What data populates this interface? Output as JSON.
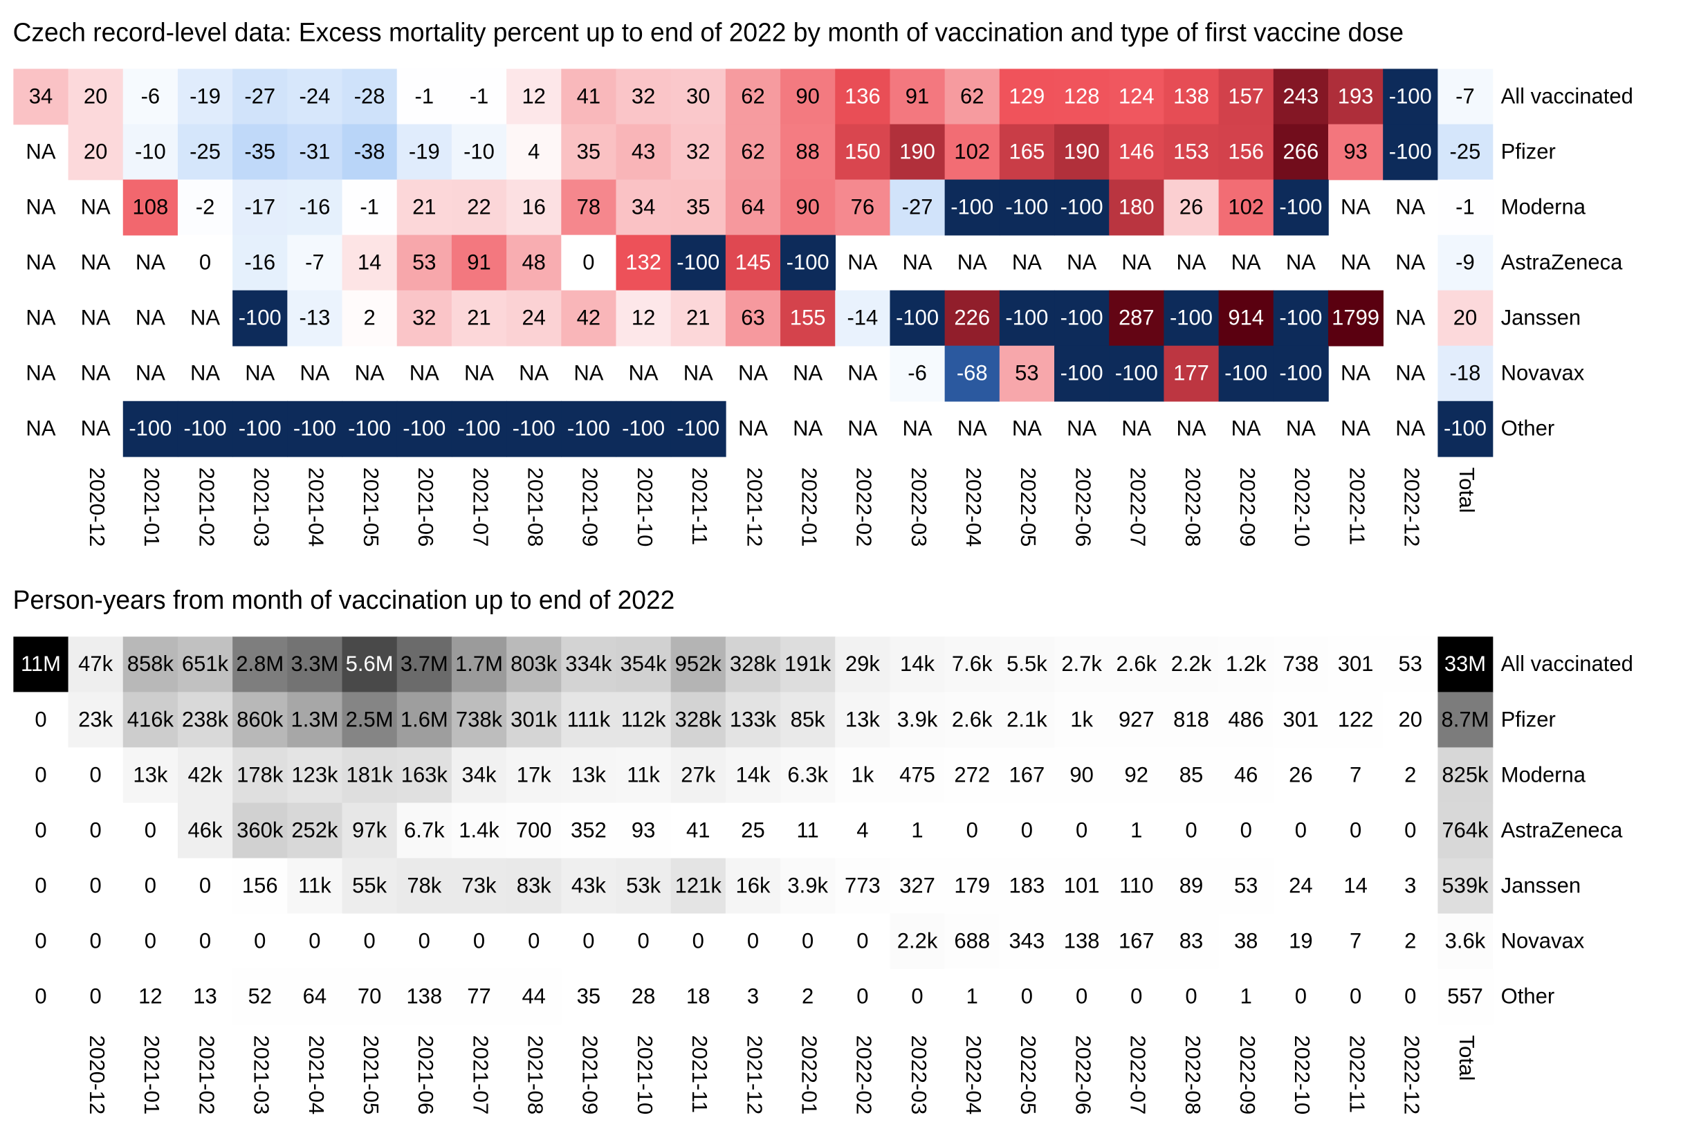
{
  "chart_data": [
    {
      "type": "heatmap",
      "title": "Czech record-level data: Excess mortality percent up to end of 2022 by month of vaccination and type of first vaccine dose",
      "colormap": [
        "#0d2b5a",
        "#2f5fa8",
        "#b8d4f8",
        "#ffffff",
        "#f0525a",
        "#5a0010"
      ],
      "categories": [
        null,
        "2020-12",
        "2021-01",
        "2021-02",
        "2021-03",
        "2021-04",
        "2021-05",
        "2021-06",
        "2021-07",
        "2021-08",
        "2021-09",
        "2021-10",
        "2021-11",
        "2021-12",
        "2022-01",
        "2022-02",
        "2022-03",
        "2022-04",
        "2022-05",
        "2022-06",
        "2022-07",
        "2022-08",
        "2022-09",
        "2022-10",
        "2022-11",
        "2022-12",
        "Total"
      ],
      "series": [
        {
          "name": "All vaccinated",
          "values": [
            34,
            20,
            -6,
            -19,
            -27,
            -24,
            -28,
            -1,
            -1,
            12,
            41,
            32,
            30,
            62,
            90,
            136,
            91,
            62,
            129,
            128,
            124,
            138,
            157,
            243,
            193,
            -100,
            -7
          ]
        },
        {
          "name": "Pfizer",
          "values": [
            null,
            20,
            -10,
            -25,
            -35,
            -31,
            -38,
            -19,
            -10,
            4,
            35,
            43,
            32,
            62,
            88,
            150,
            190,
            102,
            165,
            190,
            146,
            153,
            156,
            266,
            93,
            -100,
            -25
          ],
          "value_labels": [
            "NA",
            "20",
            "-10",
            "-25",
            "-35",
            "-31",
            "-38",
            "-19",
            "-10",
            "4",
            "35",
            "43",
            "32",
            "62",
            "88",
            "150",
            "190",
            "102",
            "165",
            "190",
            "146",
            "153",
            "156",
            "266",
            "93",
            "-100",
            "-25"
          ]
        },
        {
          "name": "Moderna",
          "values": [
            null,
            null,
            108,
            -2,
            -17,
            -16,
            -1,
            21,
            22,
            16,
            78,
            34,
            35,
            64,
            90,
            76,
            -27,
            -100,
            -100,
            -100,
            180,
            26,
            102,
            -100,
            null,
            null,
            -1
          ],
          "value_labels": [
            "NA",
            "NA",
            "108",
            "-2",
            "-17",
            "-16",
            "-1",
            "21",
            "22",
            "16",
            "78",
            "34",
            "35",
            "64",
            "90",
            "76",
            "-27",
            "-100",
            "-100",
            "-100",
            "180",
            "26",
            "102",
            "-100",
            "NA",
            "NA",
            "-1"
          ]
        },
        {
          "name": "AstraZeneca",
          "values": [
            null,
            null,
            null,
            0,
            -16,
            -7,
            14,
            53,
            91,
            48,
            0,
            132,
            -100,
            145,
            -100,
            null,
            null,
            null,
            null,
            null,
            null,
            null,
            null,
            null,
            null,
            null,
            -9
          ],
          "value_labels": [
            "NA",
            "NA",
            "NA",
            "0",
            "-16",
            "-7",
            "14",
            "53",
            "91",
            "48",
            "0",
            "132",
            "-100",
            "145",
            "-100",
            "NA",
            "NA",
            "NA",
            "NA",
            "NA",
            "NA",
            "NA",
            "NA",
            "NA",
            "NA",
            "NA",
            "-9"
          ]
        },
        {
          "name": "Janssen",
          "values": [
            null,
            null,
            null,
            null,
            -100,
            -13,
            2,
            32,
            21,
            24,
            42,
            12,
            21,
            63,
            155,
            -14,
            -100,
            226,
            -100,
            -100,
            287,
            -100,
            914,
            -100,
            1799,
            null,
            20
          ],
          "value_labels": [
            "NA",
            "NA",
            "NA",
            "NA",
            "-100",
            "-13",
            "2",
            "32",
            "21",
            "24",
            "42",
            "12",
            "21",
            "63",
            "155",
            "-14",
            "-100",
            "226",
            "-100",
            "-100",
            "287",
            "-100",
            "914",
            "-100",
            "1799",
            "NA",
            "20"
          ]
        },
        {
          "name": "Novavax",
          "values": [
            null,
            null,
            null,
            null,
            null,
            null,
            null,
            null,
            null,
            null,
            null,
            null,
            null,
            null,
            null,
            null,
            -6,
            -68,
            53,
            -100,
            -100,
            177,
            -100,
            -100,
            null,
            null,
            -18
          ],
          "value_labels": [
            "NA",
            "NA",
            "NA",
            "NA",
            "NA",
            "NA",
            "NA",
            "NA",
            "NA",
            "NA",
            "NA",
            "NA",
            "NA",
            "NA",
            "NA",
            "NA",
            "-6",
            "-68",
            "53",
            "-100",
            "-100",
            "177",
            "-100",
            "-100",
            "NA",
            "NA",
            "-18"
          ]
        },
        {
          "name": "Other",
          "values": [
            null,
            null,
            -100,
            -100,
            -100,
            -100,
            -100,
            -100,
            -100,
            -100,
            -100,
            -100,
            -100,
            null,
            null,
            null,
            null,
            null,
            null,
            null,
            null,
            null,
            null,
            null,
            null,
            null,
            -100
          ],
          "value_labels": [
            "NA",
            "NA",
            "-100",
            "-100",
            "-100",
            "-100",
            "-100",
            "-100",
            "-100",
            "-100",
            "-100",
            "-100",
            "-100",
            "NA",
            "NA",
            "NA",
            "NA",
            "NA",
            "NA",
            "NA",
            "NA",
            "NA",
            "NA",
            "NA",
            "NA",
            "NA",
            "-100"
          ]
        }
      ]
    },
    {
      "type": "heatmap",
      "title": "Person-years from month of vaccination up to end of 2022",
      "colormap": [
        "#ffffff",
        "#000000"
      ],
      "categories": [
        null,
        "2020-12",
        "2021-01",
        "2021-02",
        "2021-03",
        "2021-04",
        "2021-05",
        "2021-06",
        "2021-07",
        "2021-08",
        "2021-09",
        "2021-10",
        "2021-11",
        "2021-12",
        "2022-01",
        "2022-02",
        "2022-03",
        "2022-04",
        "2022-05",
        "2022-06",
        "2022-07",
        "2022-08",
        "2022-09",
        "2022-10",
        "2022-11",
        "2022-12",
        "Total"
      ],
      "series": [
        {
          "name": "All vaccinated",
          "values": [
            11000000,
            47000,
            858000,
            651000,
            2800000,
            3300000,
            5600000,
            3700000,
            1700000,
            803000,
            334000,
            354000,
            952000,
            328000,
            191000,
            29000,
            14000,
            7600,
            5500,
            2700,
            2600,
            2200,
            1200,
            738,
            301,
            53,
            33000000
          ],
          "value_labels": [
            "11M",
            "47k",
            "858k",
            "651k",
            "2.8M",
            "3.3M",
            "5.6M",
            "3.7M",
            "1.7M",
            "803k",
            "334k",
            "354k",
            "952k",
            "328k",
            "191k",
            "29k",
            "14k",
            "7.6k",
            "5.5k",
            "2.7k",
            "2.6k",
            "2.2k",
            "1.2k",
            "738",
            "301",
            "53",
            "33M"
          ]
        },
        {
          "name": "Pfizer",
          "values": [
            0,
            23000,
            416000,
            238000,
            860000,
            1300000,
            2500000,
            1600000,
            738000,
            301000,
            111000,
            112000,
            328000,
            133000,
            85000,
            13000,
            3900,
            2600,
            2100,
            1000,
            927,
            818,
            486,
            301,
            122,
            20,
            8700000
          ],
          "value_labels": [
            "0",
            "23k",
            "416k",
            "238k",
            "860k",
            "1.3M",
            "2.5M",
            "1.6M",
            "738k",
            "301k",
            "111k",
            "112k",
            "328k",
            "133k",
            "85k",
            "13k",
            "3.9k",
            "2.6k",
            "2.1k",
            "1k",
            "927",
            "818",
            "486",
            "301",
            "122",
            "20",
            "8.7M"
          ]
        },
        {
          "name": "Moderna",
          "values": [
            0,
            0,
            13000,
            42000,
            178000,
            123000,
            181000,
            163000,
            34000,
            17000,
            13000,
            11000,
            27000,
            14000,
            6300,
            1000,
            475,
            272,
            167,
            90,
            92,
            85,
            46,
            26,
            7,
            2,
            825000
          ],
          "value_labels": [
            "0",
            "0",
            "13k",
            "42k",
            "178k",
            "123k",
            "181k",
            "163k",
            "34k",
            "17k",
            "13k",
            "11k",
            "27k",
            "14k",
            "6.3k",
            "1k",
            "475",
            "272",
            "167",
            "90",
            "92",
            "85",
            "46",
            "26",
            "7",
            "2",
            "825k"
          ]
        },
        {
          "name": "AstraZeneca",
          "values": [
            0,
            0,
            0,
            46000,
            360000,
            252000,
            97000,
            6700,
            1400,
            700,
            352,
            93,
            41,
            25,
            11,
            4,
            1,
            0,
            0,
            0,
            1,
            0,
            0,
            0,
            0,
            0,
            764000
          ],
          "value_labels": [
            "0",
            "0",
            "0",
            "46k",
            "360k",
            "252k",
            "97k",
            "6.7k",
            "1.4k",
            "700",
            "352",
            "93",
            "41",
            "25",
            "11",
            "4",
            "1",
            "0",
            "0",
            "0",
            "1",
            "0",
            "0",
            "0",
            "0",
            "0",
            "764k"
          ]
        },
        {
          "name": "Janssen",
          "values": [
            0,
            0,
            0,
            0,
            156,
            11000,
            55000,
            78000,
            73000,
            83000,
            43000,
            53000,
            121000,
            16000,
            3900,
            773,
            327,
            179,
            183,
            101,
            110,
            89,
            53,
            24,
            14,
            3,
            539000
          ],
          "value_labels": [
            "0",
            "0",
            "0",
            "0",
            "156",
            "11k",
            "55k",
            "78k",
            "73k",
            "83k",
            "43k",
            "53k",
            "121k",
            "16k",
            "3.9k",
            "773",
            "327",
            "179",
            "183",
            "101",
            "110",
            "89",
            "53",
            "24",
            "14",
            "3",
            "539k"
          ]
        },
        {
          "name": "Novavax",
          "values": [
            0,
            0,
            0,
            0,
            0,
            0,
            0,
            0,
            0,
            0,
            0,
            0,
            0,
            0,
            0,
            0,
            2200,
            688,
            343,
            138,
            167,
            83,
            38,
            19,
            7,
            2,
            3600
          ],
          "value_labels": [
            "0",
            "0",
            "0",
            "0",
            "0",
            "0",
            "0",
            "0",
            "0",
            "0",
            "0",
            "0",
            "0",
            "0",
            "0",
            "0",
            "2.2k",
            "688",
            "343",
            "138",
            "167",
            "83",
            "38",
            "19",
            "7",
            "2",
            "3.6k"
          ]
        },
        {
          "name": "Other",
          "values": [
            0,
            0,
            12,
            13,
            52,
            64,
            70,
            138,
            77,
            44,
            35,
            28,
            18,
            3,
            2,
            0,
            0,
            1,
            0,
            0,
            0,
            0,
            1,
            0,
            0,
            0,
            557
          ]
        }
      ]
    }
  ]
}
